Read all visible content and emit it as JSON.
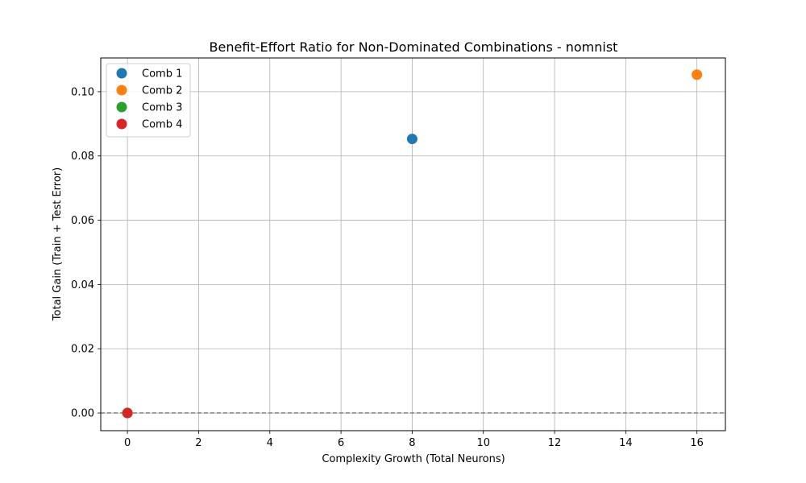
{
  "chart_data": {
    "type": "scatter",
    "title": "Benefit-Effort Ratio for Non-Dominated Combinations - nomnist",
    "xlabel": "Complexity Growth (Total Neurons)",
    "ylabel": "Total Gain (Train + Test Error)",
    "xlim": [
      -0.75,
      16.8
    ],
    "ylim": [
      -0.0055,
      0.1105
    ],
    "xticks": [
      0,
      2,
      4,
      6,
      8,
      10,
      12,
      14,
      16
    ],
    "yticks": [
      0.0,
      0.02,
      0.04,
      0.06,
      0.08,
      0.1
    ],
    "ytick_labels": [
      "0.00",
      "0.02",
      "0.04",
      "0.06",
      "0.08",
      "0.10"
    ],
    "grid": true,
    "reference_line": {
      "y": 0,
      "style": "dashed",
      "color": "#808080"
    },
    "legend_position": "top-left",
    "series": [
      {
        "name": "Comb 1",
        "color": "#1f77b4",
        "points": [
          {
            "x": 8,
            "y": 0.0853
          }
        ]
      },
      {
        "name": "Comb 2",
        "color": "#ff7f0e",
        "points": [
          {
            "x": 16,
            "y": 0.1053
          }
        ]
      },
      {
        "name": "Comb 3",
        "color": "#2ca02c",
        "points": [
          {
            "x": 0,
            "y": 0.0
          }
        ]
      },
      {
        "name": "Comb 4",
        "color": "#d62728",
        "points": [
          {
            "x": 0,
            "y": 0.0
          }
        ]
      }
    ]
  }
}
